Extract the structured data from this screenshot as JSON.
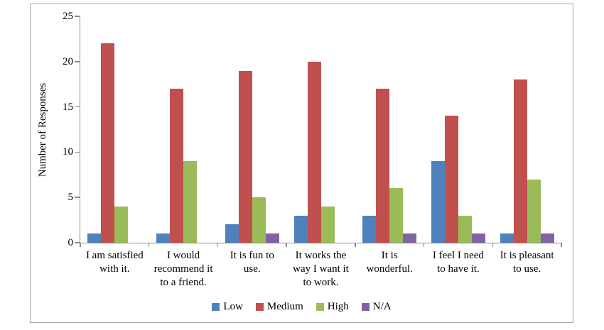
{
  "figure": {
    "background": "#ffffff",
    "border_color": "#a6a6a6",
    "axis_color": "#8c8c8c",
    "text_color": "#000000"
  },
  "chart_data": {
    "type": "bar",
    "title": "",
    "xlabel": "",
    "ylabel": "Number of Responses",
    "ylim": [
      0,
      25
    ],
    "yticks": [
      0,
      5,
      10,
      15,
      20,
      25
    ],
    "grid": false,
    "legend_position": "bottom",
    "categories": [
      {
        "label": "I am satisfied with it.",
        "lines": [
          "I am satisfied",
          "with it."
        ]
      },
      {
        "label": "I would recommend it to a friend.",
        "lines": [
          "I would",
          "recommend it",
          "to a friend."
        ]
      },
      {
        "label": "It is fun to use.",
        "lines": [
          "It is fun to",
          "use."
        ]
      },
      {
        "label": "It works the way I want it to work.",
        "lines": [
          "It works the",
          "way I want it",
          "to work."
        ]
      },
      {
        "label": "It is wonderful.",
        "lines": [
          "It is",
          "wonderful."
        ]
      },
      {
        "label": "I feel I need to have it.",
        "lines": [
          "I feel I need",
          "to have it."
        ]
      },
      {
        "label": "It is pleasant to use.",
        "lines": [
          "It is pleasant",
          "to use."
        ]
      }
    ],
    "series": [
      {
        "name": "Low",
        "color": "#4f81bd",
        "values": [
          1,
          1,
          2,
          3,
          3,
          9,
          1
        ]
      },
      {
        "name": "Medium",
        "color": "#c0504d",
        "values": [
          22,
          17,
          19,
          20,
          17,
          14,
          18
        ]
      },
      {
        "name": "High",
        "color": "#9bbb59",
        "values": [
          4,
          9,
          5,
          4,
          6,
          3,
          7
        ]
      },
      {
        "name": "N/A",
        "color": "#8064a2",
        "values": [
          0,
          0,
          1,
          0,
          1,
          1,
          1
        ]
      }
    ]
  }
}
